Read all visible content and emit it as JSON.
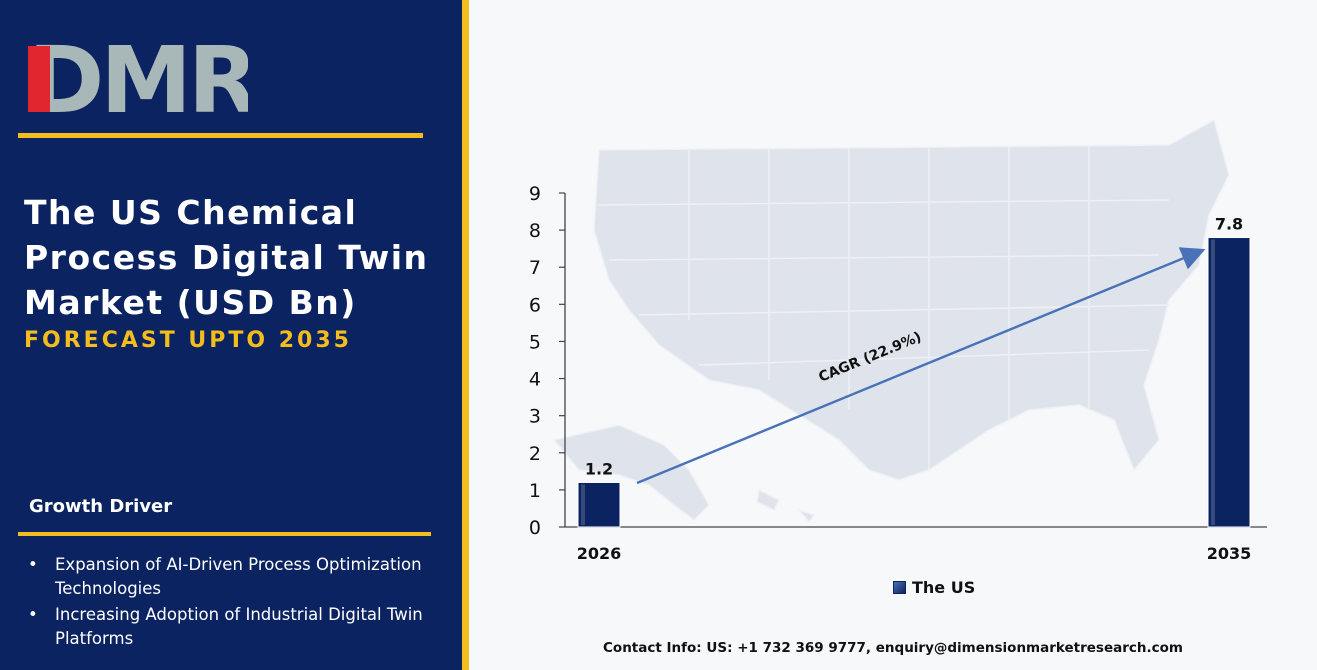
{
  "brand": {
    "logo_text": "DMR",
    "logo_colors": {
      "d": "#e1262f",
      "m": "#a8b7b7",
      "r": "#a8b7b7"
    }
  },
  "header": {
    "title_lines": [
      "The US Chemical",
      "Process Digital Twin",
      "Market (USD Bn)"
    ],
    "subtitle": "FORECAST UPTO 2035"
  },
  "growth_driver": {
    "heading": "Growth Driver",
    "items": [
      "Expansion of AI-Driven Process Optimization Technologies",
      "Increasing Adoption of Industrial Digital Twin Platforms"
    ]
  },
  "chart_data": {
    "type": "bar",
    "categories": [
      "2026",
      "2035"
    ],
    "series": [
      {
        "name": "The US",
        "values": [
          1.2,
          7.8
        ]
      }
    ],
    "data_labels": [
      "1.2",
      "7.8"
    ],
    "ylim": [
      0,
      9
    ],
    "yticks": [
      "0",
      "1",
      "2",
      "3",
      "4",
      "5",
      "6",
      "7",
      "8",
      "9"
    ],
    "annotation": "CAGR (22.9%)",
    "legend": "bottom-center",
    "grid": false,
    "bar_color": "#0b2360",
    "arrow_color": "#4a72b8",
    "background": "map-of-us"
  },
  "footer": {
    "contact": "Contact Info: US: +1 732 369 9777, enquiry@dimensionmarketresearch.com"
  },
  "colors": {
    "panel": "#0b2360",
    "accent": "#f3bd1d"
  }
}
